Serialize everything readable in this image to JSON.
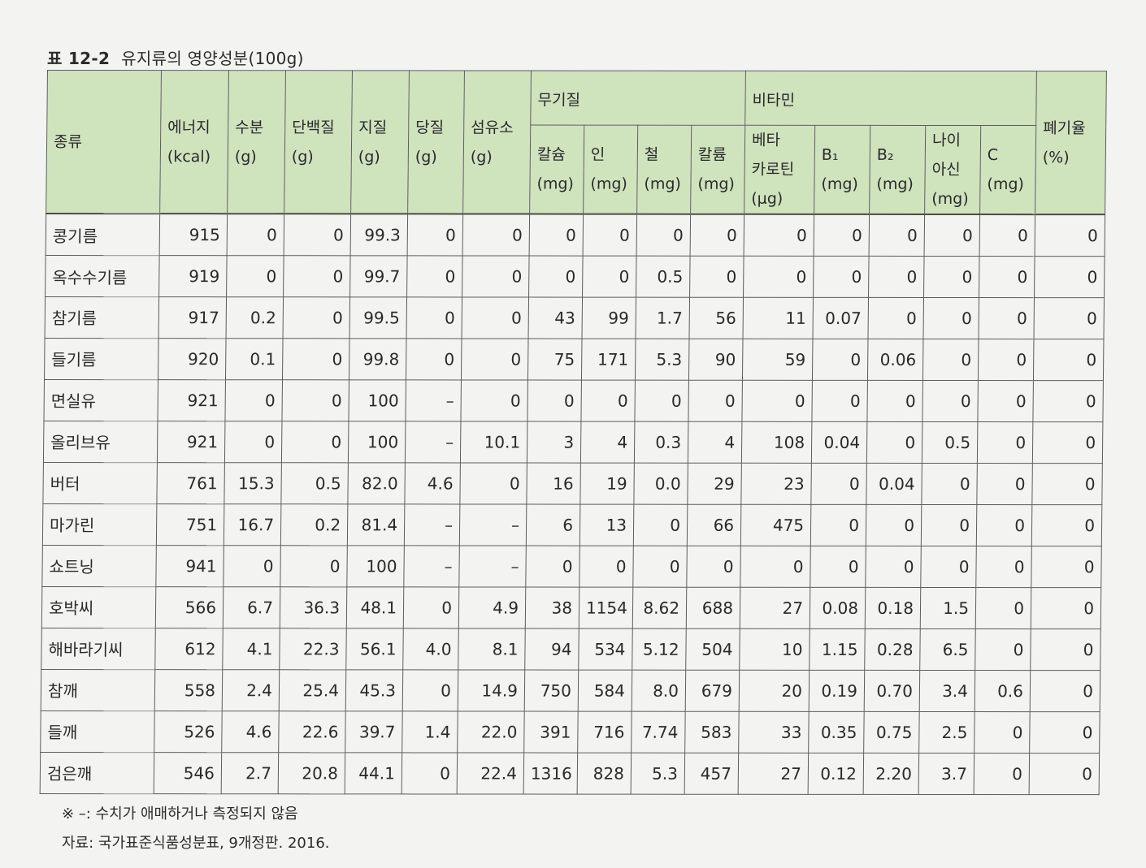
{
  "caption": {
    "number": "표 12-2",
    "title": "유지류의 영양성분(100g)"
  },
  "headers": {
    "type": "종류",
    "energy": [
      "에너지",
      "(kcal)"
    ],
    "water": [
      "수분",
      "(g)"
    ],
    "protein": [
      "단백질",
      "(g)"
    ],
    "fat": [
      "지질",
      "(g)"
    ],
    "sugar": [
      "당질",
      "(g)"
    ],
    "fiber": [
      "섬유소",
      "(g)"
    ],
    "minerals_group": "무기질",
    "calcium": [
      "칼슘",
      "(mg)"
    ],
    "phosphorus": [
      "인",
      "(mg)"
    ],
    "iron": [
      "철",
      "(mg)"
    ],
    "potassium": [
      "칼륨",
      "(mg)"
    ],
    "vitamins_group": "비타민",
    "beta_carotene": [
      "베타",
      "카로틴",
      "(µg)"
    ],
    "b1": [
      "B₁",
      "(mg)"
    ],
    "b2": [
      "B₂",
      "(mg)"
    ],
    "niacin": [
      "나이",
      "아신",
      "(mg)"
    ],
    "vitc": [
      "C",
      "(mg)"
    ],
    "waste": [
      "폐기율",
      "(%)"
    ]
  },
  "rows": [
    [
      "콩기름",
      "915",
      "0",
      "0",
      "99.3",
      "0",
      "0",
      "0",
      "0",
      "0",
      "0",
      "0",
      "0",
      "0",
      "0",
      "0",
      "0"
    ],
    [
      "옥수수기름",
      "919",
      "0",
      "0",
      "99.7",
      "0",
      "0",
      "0",
      "0",
      "0.5",
      "0",
      "0",
      "0",
      "0",
      "0",
      "0",
      "0"
    ],
    [
      "참기름",
      "917",
      "0.2",
      "0",
      "99.5",
      "0",
      "0",
      "43",
      "99",
      "1.7",
      "56",
      "11",
      "0.07",
      "0",
      "0",
      "0",
      "0"
    ],
    [
      "들기름",
      "920",
      "0.1",
      "0",
      "99.8",
      "0",
      "0",
      "75",
      "171",
      "5.3",
      "90",
      "59",
      "0",
      "0.06",
      "0",
      "0",
      "0"
    ],
    [
      "면실유",
      "921",
      "0",
      "0",
      "100",
      "–",
      "0",
      "0",
      "0",
      "0",
      "0",
      "0",
      "0",
      "0",
      "0",
      "0",
      "0"
    ],
    [
      "올리브유",
      "921",
      "0",
      "0",
      "100",
      "–",
      "10.1",
      "3",
      "4",
      "0.3",
      "4",
      "108",
      "0.04",
      "0",
      "0.5",
      "0",
      "0"
    ],
    [
      "버터",
      "761",
      "15.3",
      "0.5",
      "82.0",
      "4.6",
      "0",
      "16",
      "19",
      "0.0",
      "29",
      "23",
      "0",
      "0.04",
      "0",
      "0",
      "0"
    ],
    [
      "마가린",
      "751",
      "16.7",
      "0.2",
      "81.4",
      "–",
      "–",
      "6",
      "13",
      "0",
      "66",
      "475",
      "0",
      "0",
      "0",
      "0",
      "0"
    ],
    [
      "쇼트닝",
      "941",
      "0",
      "0",
      "100",
      "–",
      "–",
      "0",
      "0",
      "0",
      "0",
      "0",
      "0",
      "0",
      "0",
      "0",
      "0"
    ],
    [
      "호박씨",
      "566",
      "6.7",
      "36.3",
      "48.1",
      "0",
      "4.9",
      "38",
      "1154",
      "8.62",
      "688",
      "27",
      "0.08",
      "0.18",
      "1.5",
      "0",
      "0"
    ],
    [
      "해바라기씨",
      "612",
      "4.1",
      "22.3",
      "56.1",
      "4.0",
      "8.1",
      "94",
      "534",
      "5.12",
      "504",
      "10",
      "1.15",
      "0.28",
      "6.5",
      "0",
      "0"
    ],
    [
      "참깨",
      "558",
      "2.4",
      "25.4",
      "45.3",
      "0",
      "14.9",
      "750",
      "584",
      "8.0",
      "679",
      "20",
      "0.19",
      "0.70",
      "3.4",
      "0.6",
      "0"
    ],
    [
      "들깨",
      "526",
      "4.6",
      "22.6",
      "39.7",
      "1.4",
      "22.0",
      "391",
      "716",
      "7.74",
      "583",
      "33",
      "0.35",
      "0.75",
      "2.5",
      "0",
      "0"
    ],
    [
      "검은깨",
      "546",
      "2.7",
      "20.8",
      "44.1",
      "0",
      "22.4",
      "1316",
      "828",
      "5.3",
      "457",
      "27",
      "0.12",
      "2.20",
      "3.7",
      "0",
      "0"
    ]
  ],
  "notes": {
    "footnote": "※ –: 수치가 애매하거나 측정되지 않음",
    "source": "자료: 국가표준식품성분표, 9개정판. 2016."
  }
}
